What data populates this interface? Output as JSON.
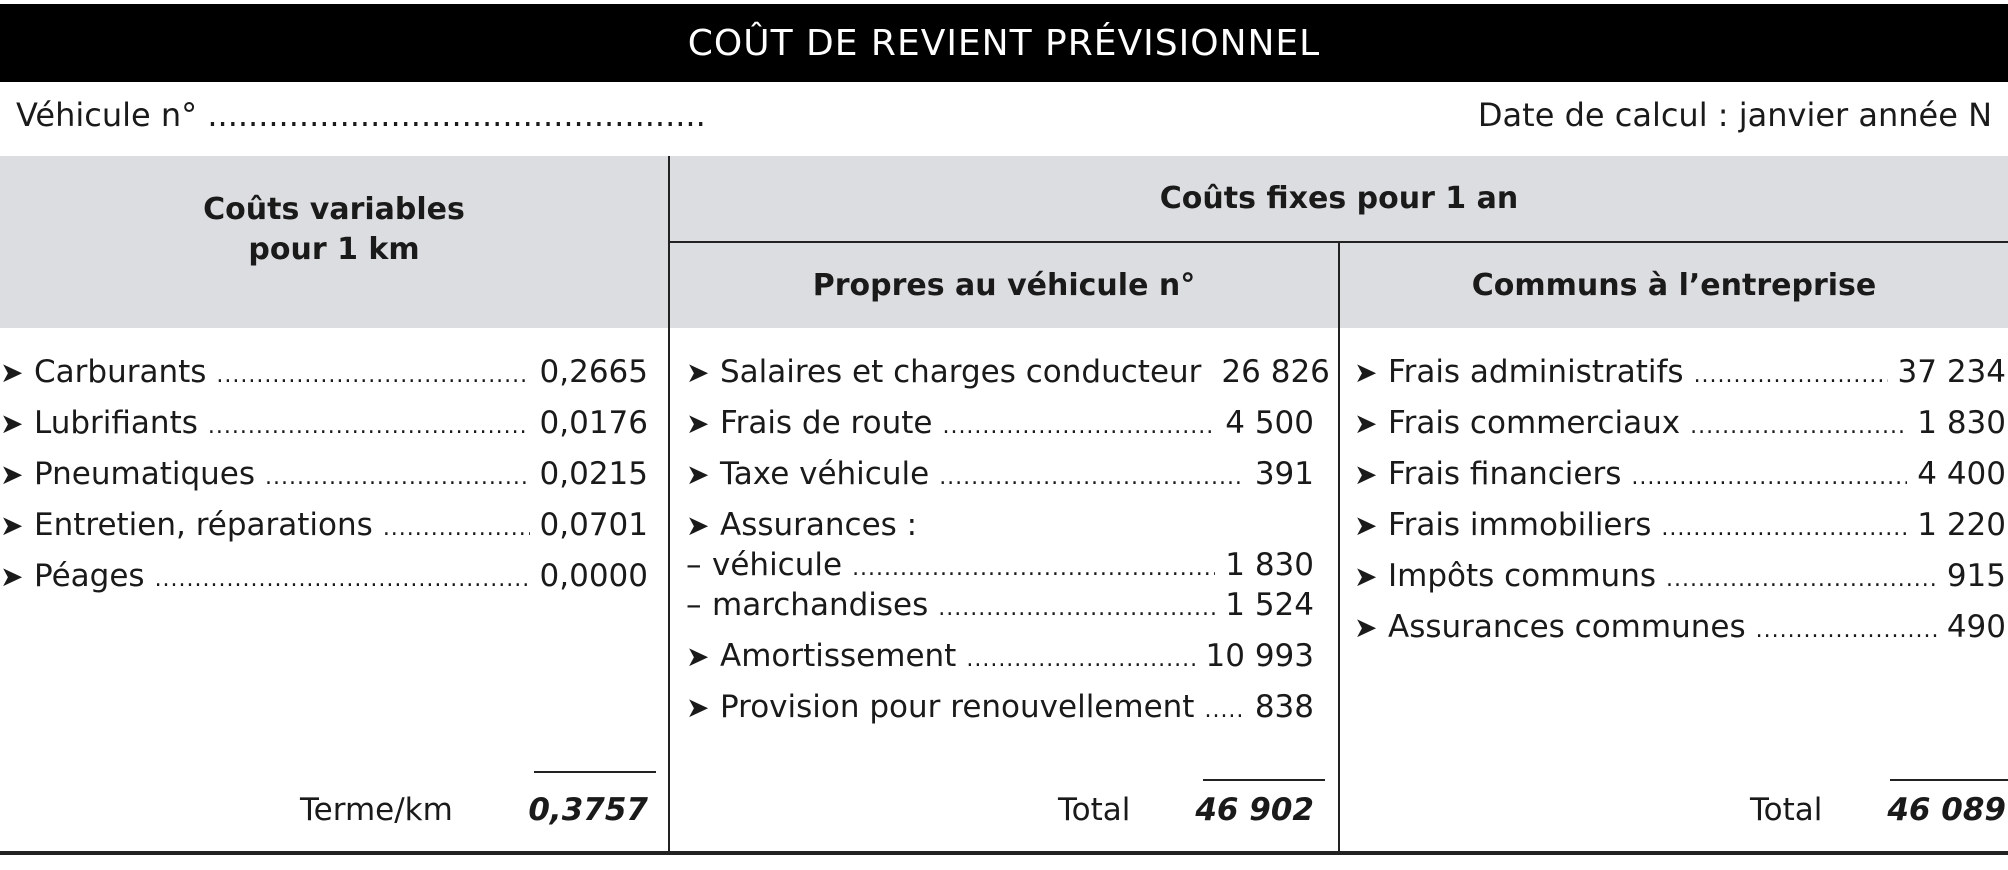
{
  "title": "COÛT DE REVIENT PRÉVISIONNEL",
  "vehicle_label": "Véhicule n° .................................................",
  "date_label": "Date de calcul : janvier année N",
  "headers": {
    "variable": "Coûts variables\npour 1 km",
    "fixed": "Coûts fixes pour 1 an",
    "own": "Propres au véhicule n°",
    "common": "Communs à l’entreprise"
  },
  "variable_costs": [
    {
      "label": "Carburants",
      "value": "0,2665"
    },
    {
      "label": "Lubrifiants",
      "value": "0,0176"
    },
    {
      "label": "Pneumatiques",
      "value": "0,0215"
    },
    {
      "label": "Entretien, réparations",
      "value": "0,0701"
    },
    {
      "label": "Péages",
      "value": "0,0000"
    }
  ],
  "variable_total": {
    "label": "Terme/km",
    "value": "0,3757"
  },
  "own_costs": {
    "salaires": {
      "label": "Salaires et charges conducteur",
      "value": "26 826"
    },
    "frais_route": {
      "label": "Frais de route",
      "value": "4 500"
    },
    "taxe": {
      "label": "Taxe véhicule",
      "value": "391"
    },
    "assurances": {
      "label": "Assurances :"
    },
    "vehicule": {
      "label": "véhicule",
      "value": "1 830"
    },
    "marchandises": {
      "label": "marchandises",
      "value": "1 524"
    },
    "amortissement": {
      "label": "Amortissement",
      "value": "10 993"
    },
    "provision": {
      "label": "Provision pour renouvellement",
      "value": "838"
    }
  },
  "own_total": {
    "label": "Total",
    "value": "46 902"
  },
  "common_costs": [
    {
      "label": "Frais administratifs",
      "value": "37 234"
    },
    {
      "label": "Frais commerciaux",
      "value": "1 830"
    },
    {
      "label": "Frais financiers",
      "value": "4 400"
    },
    {
      "label": "Frais immobiliers",
      "value": "1 220"
    },
    {
      "label": "Impôts communs",
      "value": "915"
    },
    {
      "label": "Assurances communes",
      "value": "490"
    }
  ],
  "common_total": {
    "label": "Total",
    "value": "46 089"
  }
}
